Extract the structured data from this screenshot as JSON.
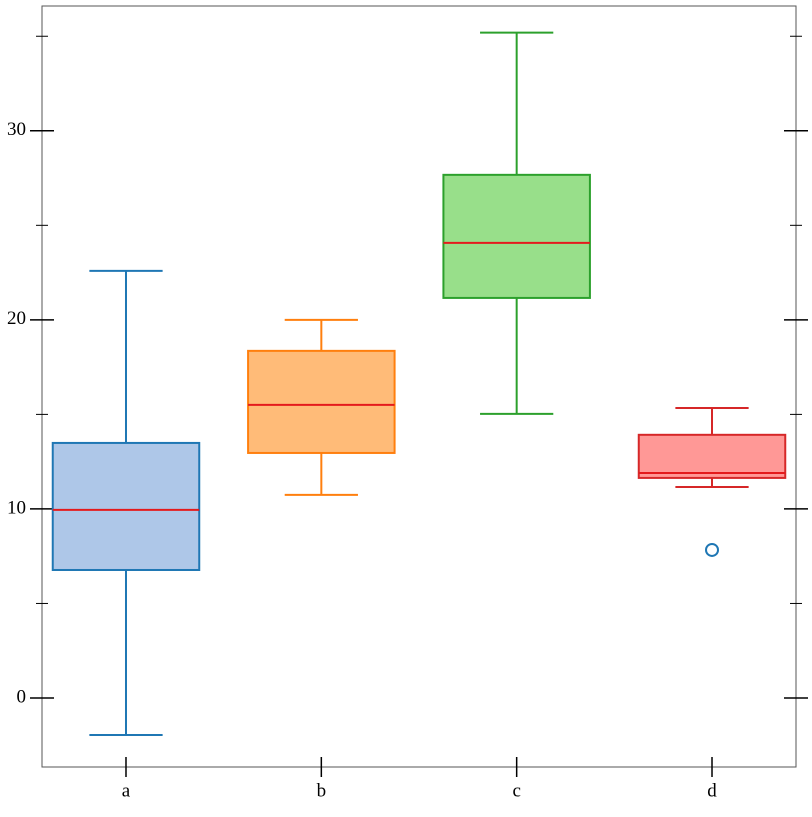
{
  "chart_data": {
    "type": "box",
    "categories": [
      "a",
      "b",
      "c",
      "d"
    ],
    "boxes": [
      {
        "whislo": -1.96,
        "q1": 6.77,
        "med": 9.95,
        "q3": 13.49,
        "whishi": 22.59,
        "fliers": [],
        "color": "#1f77b4",
        "fill": "#aec7e8"
      },
      {
        "whislo": 10.74,
        "q1": 12.96,
        "med": 15.5,
        "q3": 18.36,
        "whishi": 20.0,
        "fliers": [],
        "color": "#ff7f0e",
        "fill": "#ffbb78"
      },
      {
        "whislo": 15.03,
        "q1": 21.16,
        "med": 24.07,
        "q3": 27.67,
        "whishi": 35.19,
        "fliers": [],
        "color": "#2ca02c",
        "fill": "#98df8a"
      },
      {
        "whislo": 11.16,
        "q1": 11.64,
        "med": 11.9,
        "q3": 13.92,
        "whishi": 15.34,
        "fliers": [
          7.83
        ],
        "color": "#d62728",
        "fill": "#ff9896"
      }
    ],
    "median_color": "#e41a1c",
    "flier_color": "#1f77b4",
    "ylim": [
      -3.65,
      36.6
    ],
    "yticks": [
      0,
      10,
      20,
      30
    ],
    "yticks_minor": [
      5,
      15,
      25,
      35
    ]
  }
}
